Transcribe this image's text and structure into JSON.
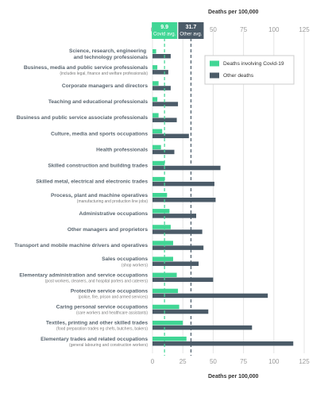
{
  "chart_data": {
    "type": "hbar",
    "xlabel": "Deaths per 100,000",
    "categories": [
      "Science, research, engineering and technology professionals",
      "Business, media and public service professionals",
      "Corporate managers and directors",
      "Teaching and educational professionals",
      "Business and public service associate professionals",
      "Culture, media and sports occupations",
      "Health professionals",
      "Skilled construction and building trades",
      "Skilled metal, electrical and electronic trades",
      "Process, plant and machine operatives",
      "Administrative occupations",
      "Other managers and proprietors",
      "Transport and mobile machine drivers and operatives",
      "Sales occupations",
      "Elementary administration and service occupations",
      "Protective service occupations",
      "Caring personal service occupations",
      "Textiles, printing and other skilled trades",
      "Elementary trades and related occupations"
    ],
    "category_notes": [
      null,
      "(includes legal, finance and welfare professionals)",
      null,
      null,
      null,
      null,
      null,
      null,
      null,
      "(manufacturing and production line jobs)",
      null,
      null,
      null,
      "(shop workers)",
      "(post workers, cleaners, and hospital porters and caterers)",
      "(police, fire, prison and armed services)",
      "(care workers and healthcare assistants)",
      "(food preparation trades eg chefs, butchers, bakers)",
      "(general labouring and construction workers)"
    ],
    "series": [
      {
        "name": "Deaths involving Covid-19",
        "color": "#41d695",
        "values": [
          3,
          4,
          5,
          4,
          5,
          8,
          7,
          10,
          10,
          12,
          14,
          15,
          17,
          17,
          20,
          21,
          22,
          25,
          28
        ]
      },
      {
        "name": "Other deaths",
        "color": "#4b5b68",
        "values": [
          15,
          13,
          15,
          21,
          20,
          30,
          18,
          56,
          51,
          52,
          36,
          41,
          42,
          38,
          50,
          95,
          46,
          82,
          116
        ]
      }
    ],
    "reference_lines": [
      {
        "value": 9.9,
        "label": "Covid avg.",
        "color": "#41d695"
      },
      {
        "value": 31.7,
        "label": "Other avg.",
        "color": "#4b5b68"
      }
    ],
    "xlim": [
      0,
      125
    ],
    "xticks": [
      0,
      25,
      50,
      75,
      100,
      125
    ],
    "grid": true,
    "legend": "upper right"
  }
}
